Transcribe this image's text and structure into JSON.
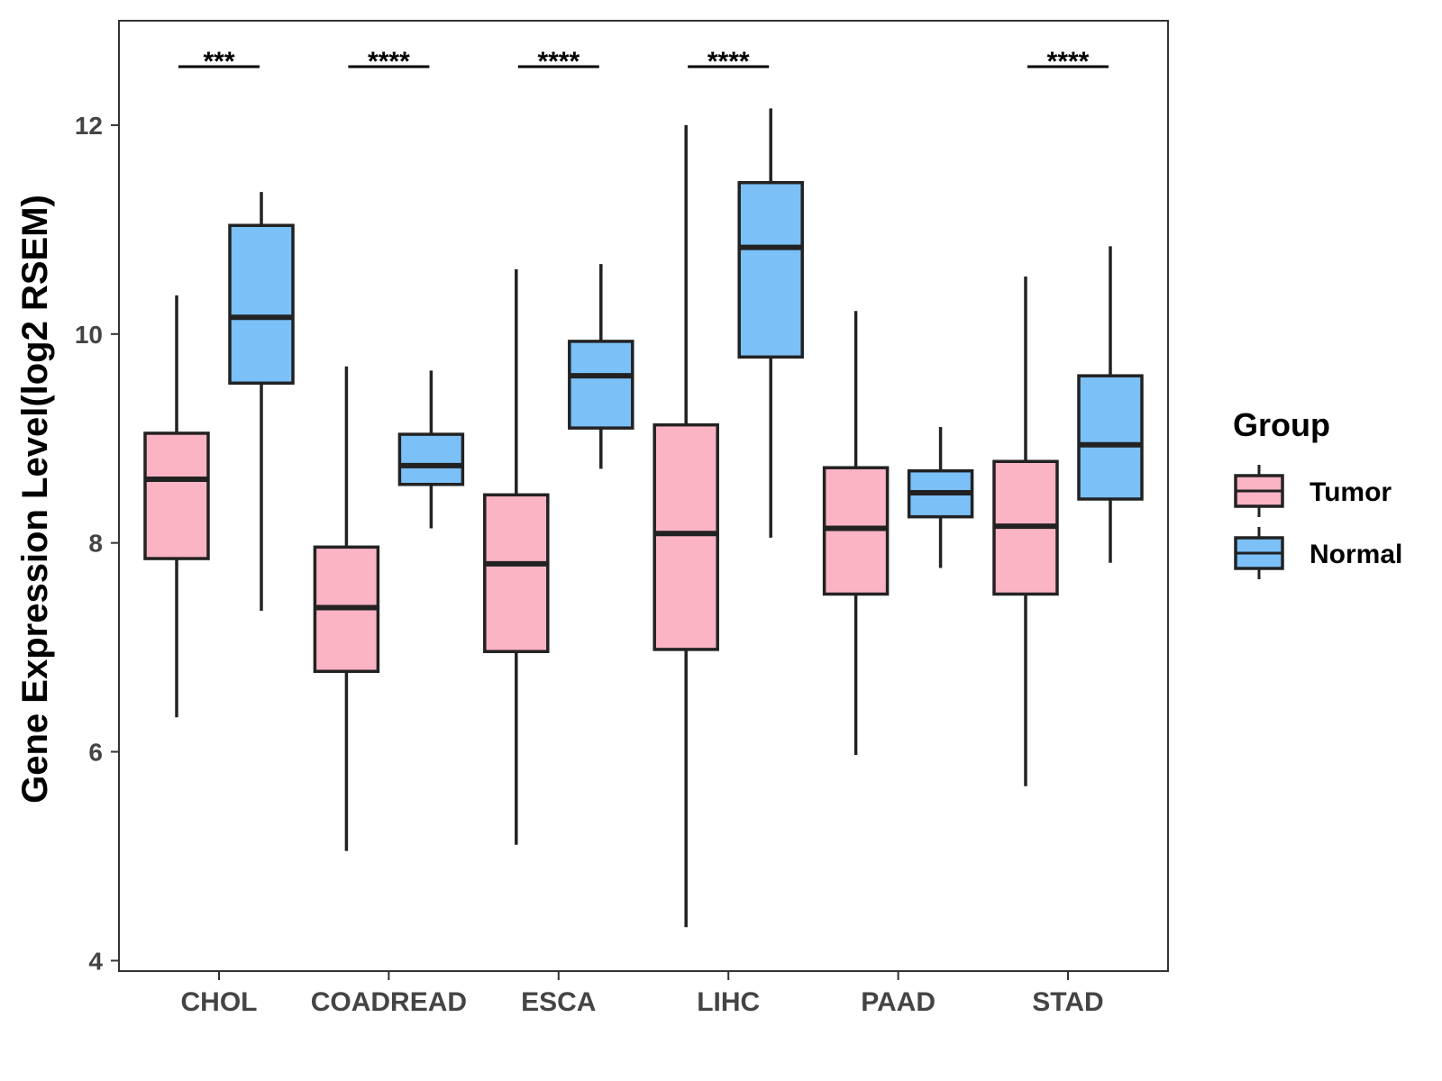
{
  "chart_data": {
    "type": "boxplot",
    "title": "",
    "xlabel": "",
    "ylabel": "Gene Expression Level(log2 RSEM)",
    "ylim": [
      3.9,
      13.0
    ],
    "yticks": [
      4,
      6,
      8,
      10,
      12
    ],
    "categories": [
      "CHOL",
      "COADREAD",
      "ESCA",
      "LIHC",
      "PAAD",
      "STAD"
    ],
    "legend": {
      "title": "Group",
      "position": "right"
    },
    "series": [
      {
        "name": "Tumor",
        "color": "#FBB4C4",
        "boxes": [
          {
            "whisker_low": 6.33,
            "q1": 7.85,
            "median": 8.61,
            "q3": 9.05,
            "whisker_high": 10.37
          },
          {
            "whisker_low": 5.05,
            "q1": 6.77,
            "median": 7.38,
            "q3": 7.96,
            "whisker_high": 9.69
          },
          {
            "whisker_low": 5.11,
            "q1": 6.96,
            "median": 7.8,
            "q3": 8.46,
            "whisker_high": 10.62
          },
          {
            "whisker_low": 4.32,
            "q1": 6.98,
            "median": 8.09,
            "q3": 9.13,
            "whisker_high": 12.0
          },
          {
            "whisker_low": 5.97,
            "q1": 7.51,
            "median": 8.14,
            "q3": 8.72,
            "whisker_high": 10.22
          },
          {
            "whisker_low": 5.67,
            "q1": 7.51,
            "median": 8.16,
            "q3": 8.78,
            "whisker_high": 10.55
          }
        ]
      },
      {
        "name": "Normal",
        "color": "#7BC0F7",
        "boxes": [
          {
            "whisker_low": 7.35,
            "q1": 9.53,
            "median": 10.16,
            "q3": 11.04,
            "whisker_high": 11.36
          },
          {
            "whisker_low": 8.14,
            "q1": 8.56,
            "median": 8.74,
            "q3": 9.04,
            "whisker_high": 9.65
          },
          {
            "whisker_low": 8.71,
            "q1": 9.1,
            "median": 9.6,
            "q3": 9.93,
            "whisker_high": 10.67
          },
          {
            "whisker_low": 8.05,
            "q1": 9.78,
            "median": 10.83,
            "q3": 11.45,
            "whisker_high": 12.16
          },
          {
            "whisker_low": 7.76,
            "q1": 8.25,
            "median": 8.48,
            "q3": 8.69,
            "whisker_high": 9.11
          },
          {
            "whisker_low": 7.81,
            "q1": 8.42,
            "median": 8.94,
            "q3": 9.6,
            "whisker_high": 10.84
          }
        ]
      }
    ],
    "significance": [
      "***",
      "****",
      "****",
      "****",
      "",
      "****"
    ]
  }
}
